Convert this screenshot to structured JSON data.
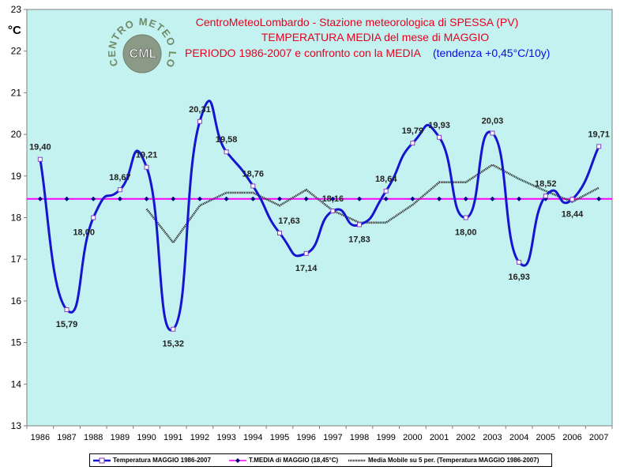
{
  "chart_data": {
    "type": "line",
    "title": "CentroMeteoLombardo - Stazione meteorologica di SPESSA (PV)",
    "subtitle_line2": "TEMPERATURA MEDIA del mese di MAGGIO",
    "subtitle_line3": "PERIODO 1986-2007 e confronto con la MEDIA",
    "trend_note": "(tendenza +0,45°C/10y)",
    "ylabel": "°C",
    "ylim": [
      13,
      23
    ],
    "yticks": [
      13,
      14,
      15,
      16,
      17,
      18,
      19,
      20,
      21,
      22,
      23
    ],
    "categories": [
      "1986",
      "1987",
      "1988",
      "1989",
      "1990",
      "1991",
      "1992",
      "1993",
      "1994",
      "1995",
      "1996",
      "1997",
      "1998",
      "1999",
      "2000",
      "2001",
      "2002",
      "2003",
      "2004",
      "2005",
      "2006",
      "2007"
    ],
    "series": [
      {
        "name": "Temperatura MAGGIO 1986-2007",
        "color": "#1515d0",
        "values": [
          19.4,
          15.79,
          18.0,
          18.67,
          19.21,
          15.32,
          20.31,
          19.58,
          18.76,
          17.63,
          17.14,
          18.16,
          17.83,
          18.64,
          19.79,
          19.93,
          18.0,
          20.03,
          16.93,
          18.52,
          18.44,
          19.71
        ],
        "labels": [
          "19,40",
          "15,79",
          "18,00",
          "18,67",
          "19,21",
          "15,32",
          "20,31",
          "19,58",
          "18,76",
          "17,63",
          "17,14",
          "18,16",
          "17,83",
          "18,64",
          "19,79",
          "19,93",
          "18,00",
          "20,03",
          "16,93",
          "18,52",
          "18,44",
          "19,71"
        ]
      },
      {
        "name": "T.MEDIA di MAGGIO (18,45°C)",
        "color": "#ff00ff",
        "values": [
          18.45,
          18.45,
          18.45,
          18.45,
          18.45,
          18.45,
          18.45,
          18.45,
          18.45,
          18.45,
          18.45,
          18.45,
          18.45,
          18.45,
          18.45,
          18.45,
          18.45,
          18.45,
          18.45,
          18.45,
          18.45,
          18.45
        ]
      },
      {
        "name": "Media Mobile su 5 per. (Temperatura MAGGIO 1986-2007)",
        "color": "#333333",
        "values": [
          null,
          null,
          null,
          null,
          18.21,
          17.4,
          18.29,
          18.6,
          18.6,
          18.29,
          18.67,
          18.17,
          17.88,
          17.88,
          18.31,
          18.85,
          18.85,
          19.27,
          18.93,
          18.64,
          18.38,
          18.72
        ]
      }
    ],
    "grid": false,
    "legend_position": "bottom"
  },
  "logo": {
    "arc_top": "CENTRO METEO",
    "arc_right": "LOMBARDO",
    "center": "CML"
  },
  "colors": {
    "plot_background": "#c4f2f0",
    "title_red": "#e8001f",
    "trend_blue": "#0a0ae6"
  }
}
